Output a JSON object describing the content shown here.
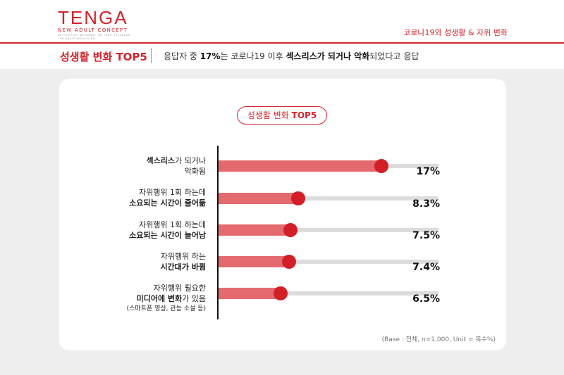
{
  "header": {
    "logo_main": "TENGA",
    "logo_sub": "NEW ADULT CONCEPT",
    "logo_tiny": "BE POSITIVE, BE SMART, BE FREE. PLEASURE, THE ADULT SHOULD BE",
    "topic": "코로나19와 성생활 & 자위 변화"
  },
  "title_bar": {
    "title": "성생활 변화 TOP5",
    "summary_pre": "응답자 중 ",
    "summary_pct": "17%",
    "summary_mid": "는 코로나19 이후 ",
    "summary_bold": "섹스리스가 되거나 악화",
    "summary_post": "되었다고 응답"
  },
  "card": {
    "pill_plain": "성생활 변화 ",
    "pill_bold": "TOP5",
    "footnote": "(Base : 전체, n=1,000, Unit = 복수%)"
  },
  "labels": [
    {
      "l1_bold": "섹스리스",
      "l1_rest": "가 되거나",
      "l2": "악화됨"
    },
    {
      "l1": "자위행위 1회 하는데",
      "l2_bold": "소요되는 시간이 줄어듦"
    },
    {
      "l1": "자위행위 1회 하는데",
      "l2_bold": "소요되는 시간이 늘어남"
    },
    {
      "l1": "자위행위 하는",
      "l2_bold": "시간대가 바뀜"
    },
    {
      "l1": "자위행위 필요한",
      "l2_bold": "미디어에 변화",
      "l2_rest": "가 있음",
      "l3": "(스마트폰 영상, 관능 소설 등)"
    }
  ],
  "value_labels": [
    "17%",
    "8.3%",
    "7.5%",
    "7.4%",
    "6.5%"
  ],
  "chart_data": {
    "type": "bar",
    "orientation": "horizontal",
    "title": "성생활 변화 TOP5",
    "categories": [
      "섹스리스가 되거나 악화됨",
      "자위행위 1회 하는데 소요되는 시간이 줄어듦",
      "자위행위 1회 하는데 소요되는 시간이 늘어남",
      "자위행위 하는 시간대가 바뀜",
      "자위행위 필요한 미디어에 변화가 있음 (스마트폰 영상, 관능 소설 등)"
    ],
    "values": [
      17,
      8.3,
      7.5,
      7.4,
      6.5
    ],
    "unit": "%",
    "xlim": [
      0,
      23
    ],
    "colors": {
      "bar": "#e36a6f",
      "dot": "#d21f27",
      "track": "#dcdcdc",
      "accent": "#d2242b"
    }
  }
}
